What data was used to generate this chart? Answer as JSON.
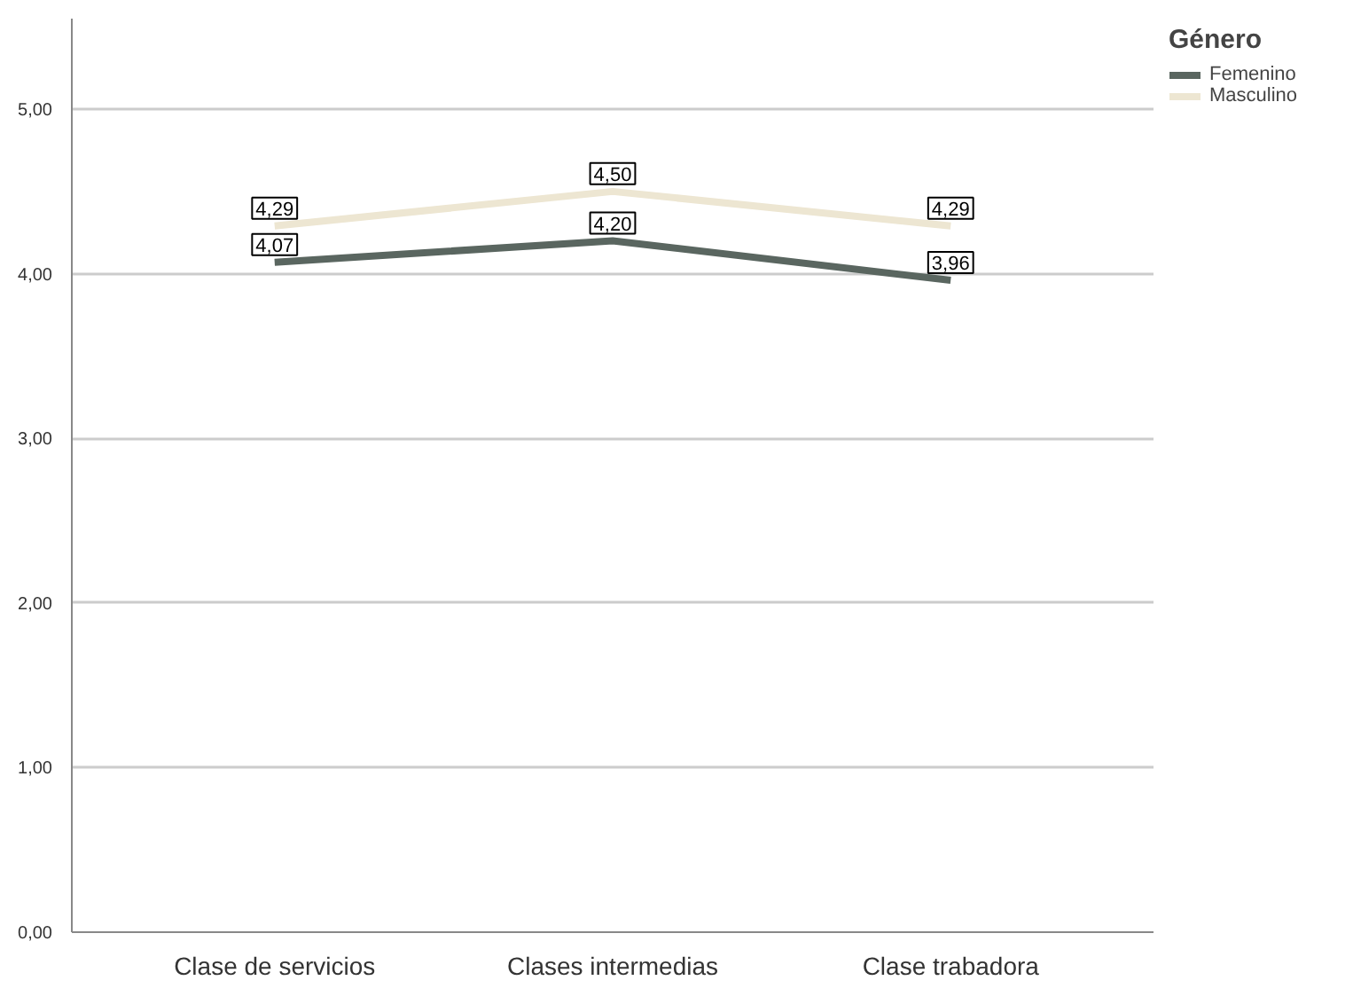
{
  "chart_data": {
    "type": "line",
    "legend_title": "Género",
    "categories": [
      "Clase de servicios",
      "Clases intermedias",
      "Clase trabadora"
    ],
    "series": [
      {
        "name": "Femenino",
        "color": "#5a6660",
        "values": [
          4.07,
          4.2,
          3.96
        ],
        "value_labels": [
          "4,07",
          "4,20",
          "3,96"
        ]
      },
      {
        "name": "Masculino",
        "color": "#ede6d2",
        "values": [
          4.29,
          4.5,
          4.29
        ],
        "value_labels": [
          "4,29",
          "4,50",
          "4,29"
        ]
      }
    ],
    "ylim": [
      0,
      5.55
    ],
    "yticks": [
      {
        "value": 0,
        "label": "0,00"
      },
      {
        "value": 1,
        "label": "1,00"
      },
      {
        "value": 2,
        "label": "2,00"
      },
      {
        "value": 3,
        "label": "3,00"
      },
      {
        "value": 4,
        "label": "4,00"
      },
      {
        "value": 5,
        "label": "5,00"
      }
    ],
    "grid": "y",
    "legend": "top right",
    "line_style": "solid"
  }
}
